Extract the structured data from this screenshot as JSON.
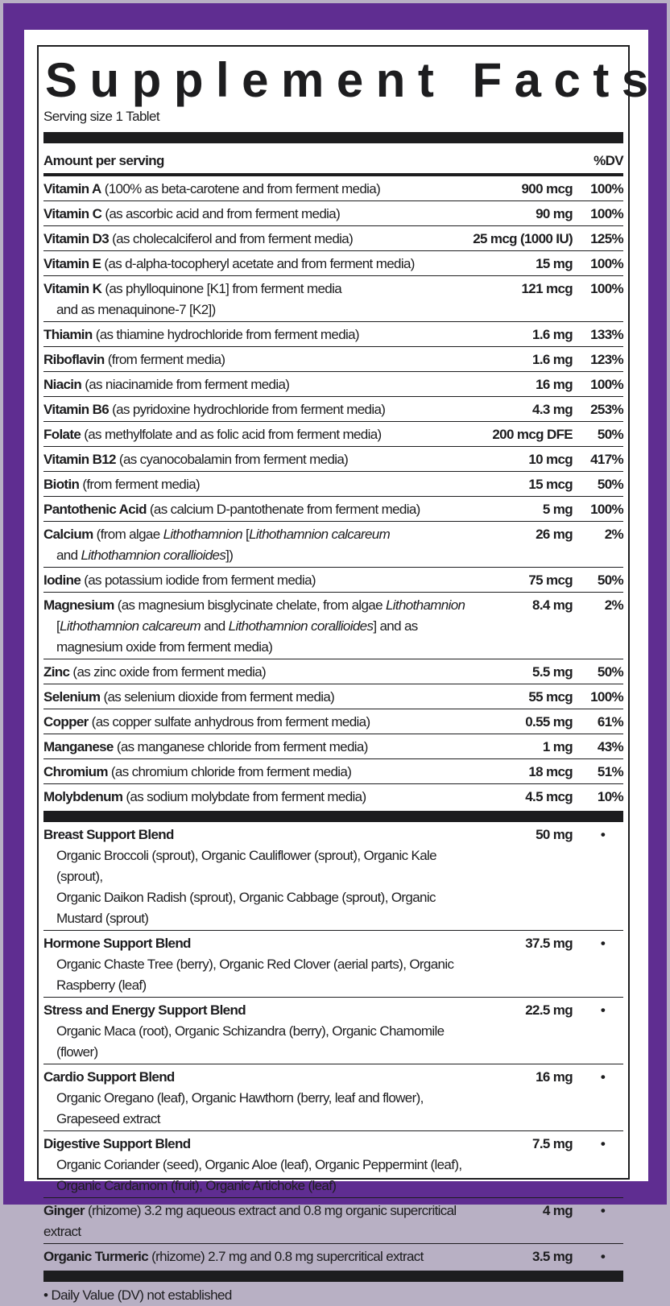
{
  "colors": {
    "border": "#5f2d91",
    "text": "#1d1d1f"
  },
  "title": "Supplement Facts",
  "serving": "Serving size 1 Tablet",
  "header": {
    "amount": "Amount per serving",
    "dv": "%DV"
  },
  "nutrients": [
    {
      "name": "Vitamin A",
      "lines": [
        [
          {
            "t": " (100% as beta-carotene and from ferment media)"
          }
        ]
      ],
      "amount": "900 mcg",
      "dv": "100%"
    },
    {
      "name": "Vitamin C",
      "lines": [
        [
          {
            "t": " (as ascorbic acid and from ferment media)"
          }
        ]
      ],
      "amount": "90 mg",
      "dv": "100%"
    },
    {
      "name": "Vitamin D3",
      "lines": [
        [
          {
            "t": " (as cholecalciferol and from ferment media)"
          }
        ]
      ],
      "amount": "25 mcg (1000 IU)",
      "dv": "125%"
    },
    {
      "name": "Vitamin E",
      "lines": [
        [
          {
            "t": " (as d-alpha-tocopheryl acetate and from ferment media)"
          }
        ]
      ],
      "amount": "15 mg",
      "dv": "100%"
    },
    {
      "name": "Vitamin K",
      "lines": [
        [
          {
            "t": " (as phylloquinone [K1] from ferment media"
          }
        ],
        [
          {
            "t": "and as menaquinone-7 [K2])"
          }
        ]
      ],
      "amount": "121 mcg",
      "dv": "100%"
    },
    {
      "name": "Thiamin",
      "lines": [
        [
          {
            "t": " (as thiamine hydrochloride from ferment media)"
          }
        ]
      ],
      "amount": "1.6 mg",
      "dv": "133%"
    },
    {
      "name": "Riboflavin",
      "lines": [
        [
          {
            "t": " (from ferment media)"
          }
        ]
      ],
      "amount": "1.6 mg",
      "dv": "123%"
    },
    {
      "name": "Niacin",
      "lines": [
        [
          {
            "t": " (as niacinamide from ferment media)"
          }
        ]
      ],
      "amount": "16 mg",
      "dv": "100%"
    },
    {
      "name": "Vitamin B6",
      "lines": [
        [
          {
            "t": " (as pyridoxine hydrochloride from ferment media)"
          }
        ]
      ],
      "amount": "4.3 mg",
      "dv": "253%"
    },
    {
      "name": "Folate",
      "lines": [
        [
          {
            "t": " (as methylfolate and as folic acid from ferment media)"
          }
        ]
      ],
      "amount": "200 mcg DFE",
      "dv": "50%"
    },
    {
      "name": "Vitamin B12",
      "lines": [
        [
          {
            "t": " (as cyanocobalamin from ferment media)"
          }
        ]
      ],
      "amount": "10 mcg",
      "dv": "417%"
    },
    {
      "name": "Biotin",
      "lines": [
        [
          {
            "t": " (from ferment media)"
          }
        ]
      ],
      "amount": "15 mcg",
      "dv": "50%"
    },
    {
      "name": "Pantothenic Acid",
      "lines": [
        [
          {
            "t": " (as calcium D-pantothenate from ferment media)"
          }
        ]
      ],
      "amount": "5 mg",
      "dv": "100%"
    },
    {
      "name": "Calcium",
      "lines": [
        [
          {
            "t": " (from algae "
          },
          {
            "t": "Lithothamnion",
            "i": true
          },
          {
            "t": " ["
          },
          {
            "t": "Lithothamnion calcareum",
            "i": true
          }
        ],
        [
          {
            "t": "and "
          },
          {
            "t": "Lithothamnion corallioides",
            "i": true
          },
          {
            "t": "])"
          }
        ]
      ],
      "amount": "26 mg",
      "dv": "2%"
    },
    {
      "name": "Iodine",
      "lines": [
        [
          {
            "t": " (as potassium iodide from ferment media)"
          }
        ]
      ],
      "amount": "75 mcg",
      "dv": "50%"
    },
    {
      "name": "Magnesium",
      "lines": [
        [
          {
            "t": " (as magnesium bisglycinate chelate, from algae "
          },
          {
            "t": "Lithothamnion",
            "i": true
          }
        ],
        [
          {
            "t": "["
          },
          {
            "t": "Lithothamnion calcareum",
            "i": true
          },
          {
            "t": " and "
          },
          {
            "t": "Lithothamnion corallioides",
            "i": true
          },
          {
            "t": "] and as"
          }
        ],
        [
          {
            "t": "magnesium oxide from ferment media)"
          }
        ]
      ],
      "amount": "8.4 mg",
      "dv": "2%"
    },
    {
      "name": "Zinc",
      "lines": [
        [
          {
            "t": " (as zinc oxide from ferment media)"
          }
        ]
      ],
      "amount": "5.5 mg",
      "dv": "50%"
    },
    {
      "name": "Selenium",
      "lines": [
        [
          {
            "t": " (as selenium dioxide from ferment media)"
          }
        ]
      ],
      "amount": "55 mcg",
      "dv": "100%"
    },
    {
      "name": "Copper",
      "lines": [
        [
          {
            "t": " (as copper sulfate anhydrous from ferment media)"
          }
        ]
      ],
      "amount": "0.55 mg",
      "dv": "61%"
    },
    {
      "name": "Manganese",
      "lines": [
        [
          {
            "t": " (as manganese chloride from ferment media)"
          }
        ]
      ],
      "amount": "1 mg",
      "dv": "43%"
    },
    {
      "name": "Chromium",
      "lines": [
        [
          {
            "t": " (as chromium chloride from ferment media)"
          }
        ]
      ],
      "amount": "18 mcg",
      "dv": "51%"
    },
    {
      "name": "Molybdenum",
      "lines": [
        [
          {
            "t": " (as sodium molybdate from ferment media)"
          }
        ]
      ],
      "amount": "4.5 mcg",
      "dv": "10%"
    }
  ],
  "blends": [
    {
      "name": "Breast Support Blend",
      "lines": [
        [],
        [
          {
            "t": "Organic Broccoli (sprout), Organic Cauliflower (sprout), Organic Kale (sprout),"
          }
        ],
        [
          {
            "t": "Organic Daikon Radish (sprout), Organic Cabbage (sprout), Organic Mustard (sprout)"
          }
        ]
      ],
      "amount": "50 mg",
      "dv": "•"
    },
    {
      "name": "Hormone Support Blend",
      "lines": [
        [],
        [
          {
            "t": "Organic Chaste Tree (berry), Organic Red Clover (aerial parts), Organic Raspberry (leaf)"
          }
        ]
      ],
      "amount": "37.5 mg",
      "dv": "•"
    },
    {
      "name": "Stress and Energy Support Blend",
      "lines": [
        [],
        [
          {
            "t": "Organic Maca (root), Organic Schizandra (berry), Organic Chamomile (flower)"
          }
        ]
      ],
      "amount": "22.5 mg",
      "dv": "•"
    },
    {
      "name": "Cardio Support Blend",
      "lines": [
        [],
        [
          {
            "t": "Organic Oregano (leaf), Organic Hawthorn (berry, leaf and flower), Grapeseed extract"
          }
        ]
      ],
      "amount": "16 mg",
      "dv": "•"
    },
    {
      "name": "Digestive Support Blend",
      "lines": [
        [],
        [
          {
            "t": "Organic Coriander (seed), Organic Aloe (leaf), Organic Peppermint (leaf),"
          }
        ],
        [
          {
            "t": "Organic Cardamom (fruit), Organic Artichoke (leaf)"
          }
        ]
      ],
      "amount": "7.5 mg",
      "dv": "•"
    },
    {
      "name": "Ginger",
      "lines": [
        [
          {
            "t": " (rhizome) 3.2 mg aqueous extract and 0.8 mg organic supercritical extract"
          }
        ]
      ],
      "amount": "4 mg",
      "dv": "•"
    },
    {
      "name": "Organic Turmeric",
      "lines": [
        [
          {
            "t": " (rhizome) 2.7 mg and 0.8 mg supercritical extract"
          }
        ]
      ],
      "amount": "3.5 mg",
      "dv": "•"
    }
  ],
  "footnote": "• Daily Value (DV) not established"
}
